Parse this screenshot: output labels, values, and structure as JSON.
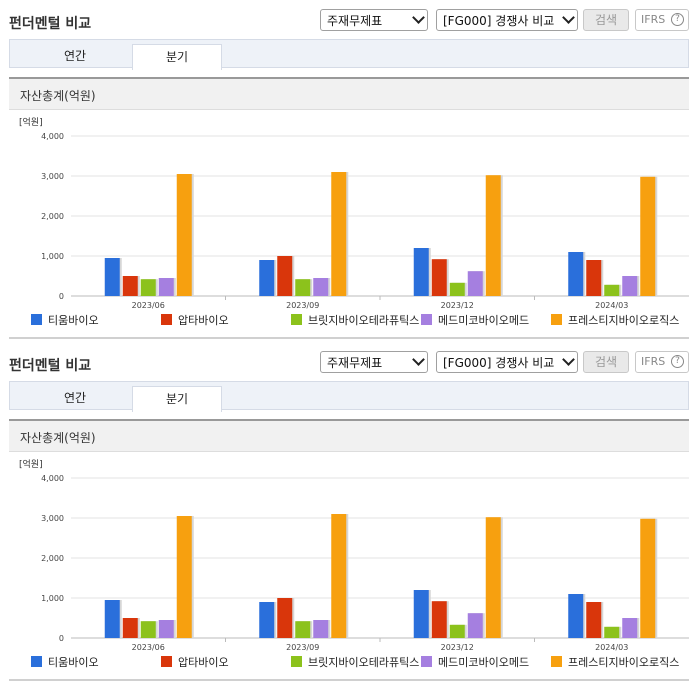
{
  "panels": [
    {
      "title": "펀더멘털 비교",
      "report_select": "주재무제표",
      "compare_select": "[FG000] 경쟁사 비교",
      "search_label": "검색",
      "ifrs_label": "IFRS",
      "ifrs_help": "?",
      "tabs": [
        "연간",
        "분기"
      ],
      "active_tab": "분기",
      "section_title": "자산총계(억원)"
    },
    {
      "title": "펀더멘털 비교",
      "report_select": "주재무제표",
      "compare_select": "[FG000] 경쟁사 비교",
      "search_label": "검색",
      "ifrs_label": "IFRS",
      "ifrs_help": "?",
      "tabs": [
        "연간",
        "분기"
      ],
      "active_tab": "분기",
      "section_title": "자산총계(억원)"
    }
  ],
  "chart_data": [
    {
      "type": "bar",
      "unit_label": "[억원]",
      "categories": [
        "2023/06",
        "2023/09",
        "2023/12",
        "2024/03"
      ],
      "ylim": [
        0,
        4000
      ],
      "yticks": [
        "0",
        "1,000",
        "2,000",
        "3,000",
        "4,000"
      ],
      "grid": true,
      "legend_position": "bottom",
      "series": [
        {
          "name": "티움바이오",
          "color": "#2a6fdb",
          "values": [
            950,
            900,
            1200,
            1100
          ]
        },
        {
          "name": "압타바이오",
          "color": "#d9360b",
          "values": [
            500,
            1000,
            920,
            900
          ]
        },
        {
          "name": "브릿지바이오테라퓨틱스",
          "color": "#8cc21c",
          "values": [
            420,
            420,
            330,
            280
          ]
        },
        {
          "name": "메드미코바이오메드",
          "color": "#a57fe0",
          "values": [
            450,
            450,
            620,
            500
          ]
        },
        {
          "name": "프레스티지바이오로직스",
          "color": "#f7a00f",
          "values": [
            3050,
            3100,
            3020,
            2980
          ]
        }
      ]
    },
    {
      "type": "bar",
      "unit_label": "[억원]",
      "categories": [
        "2023/06",
        "2023/09",
        "2023/12",
        "2024/03"
      ],
      "ylim": [
        0,
        4000
      ],
      "yticks": [
        "0",
        "1,000",
        "2,000",
        "3,000",
        "4,000"
      ],
      "grid": true,
      "legend_position": "bottom",
      "series": [
        {
          "name": "티움바이오",
          "color": "#2a6fdb",
          "values": [
            950,
            900,
            1200,
            1100
          ]
        },
        {
          "name": "압타바이오",
          "color": "#d9360b",
          "values": [
            500,
            1000,
            920,
            900
          ]
        },
        {
          "name": "브릿지바이오테라퓨틱스",
          "color": "#8cc21c",
          "values": [
            420,
            420,
            330,
            280
          ]
        },
        {
          "name": "메드미코바이오메드",
          "color": "#a57fe0",
          "values": [
            450,
            450,
            620,
            500
          ]
        },
        {
          "name": "프레스티지바이오로직스",
          "color": "#f7a00f",
          "values": [
            3050,
            3100,
            3020,
            2980
          ]
        }
      ]
    }
  ]
}
